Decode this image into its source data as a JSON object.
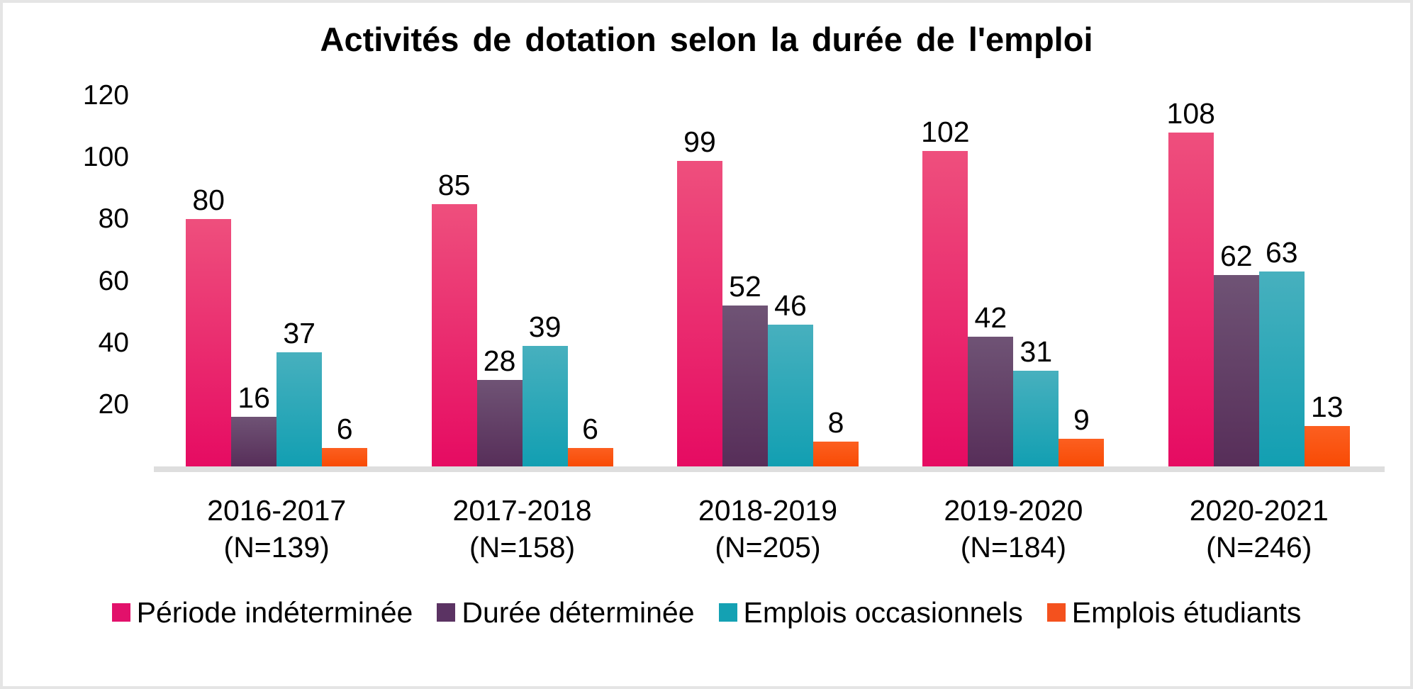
{
  "title": "Activités de dotation selon la durée de l'emploi",
  "colors": {
    "background": "#ffffff",
    "frame_border": "#e5e5e5",
    "axis_line": "#dedede",
    "text": "#000000",
    "serie1_pink": "#e30c66",
    "serie2_purple": "#5b3363",
    "serie3_teal": "#14a1b3",
    "serie4_orange": "#f4511e"
  },
  "chart_data": {
    "type": "bar",
    "title": "Activités de dotation selon la durée de l'emploi",
    "categories": [
      "2016-2017",
      "2017-2018",
      "2018-2019",
      "2019-2020",
      "2020-2021"
    ],
    "category_sublabels": [
      "(N=139)",
      "(N=158)",
      "(N=205)",
      "(N=184)",
      "(N=246)"
    ],
    "series": [
      {
        "name": "Période indéterminée",
        "values": [
          80,
          85,
          99,
          102,
          108
        ],
        "color_top": "#ee4f7d",
        "color_bottom": "#e60b62",
        "legend_color": "#e2116b"
      },
      {
        "name": "Durée déterminée",
        "values": [
          16,
          28,
          52,
          42,
          62
        ],
        "color_top": "#6f5375",
        "color_bottom": "#572e59",
        "legend_color": "#5b3363"
      },
      {
        "name": "Emplois occasionnels",
        "values": [
          37,
          39,
          46,
          31,
          63
        ],
        "color_top": "#47b0be",
        "color_bottom": "#129fb2",
        "legend_color": "#14a1b3"
      },
      {
        "name": "Emplois étudiants",
        "values": [
          6,
          6,
          8,
          9,
          13
        ],
        "color_top": "#fc5f20",
        "color_bottom": "#f84b05",
        "legend_color": "#f4511e"
      }
    ],
    "xlabel": "",
    "ylabel": "",
    "ylim": [
      0,
      120
    ],
    "yticks": [
      20,
      40,
      60,
      80,
      100,
      120
    ],
    "grid": false,
    "legend_position": "bottom",
    "bar_value_labels": true
  }
}
